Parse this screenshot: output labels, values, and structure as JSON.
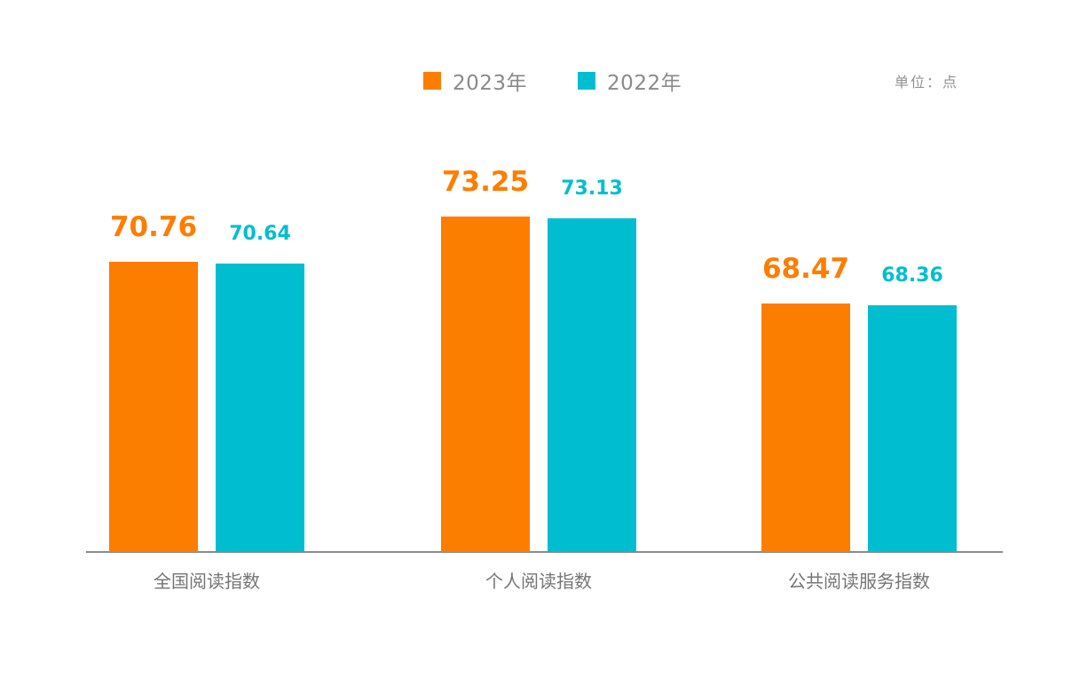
{
  "unit_label": "单位：点",
  "chart_data": {
    "type": "bar",
    "categories": [
      "全国阅读指数",
      "个人阅读指数",
      "公共阅读服务指数"
    ],
    "series": [
      {
        "name": "2023年",
        "color": "#FC7E00",
        "values": [
          70.76,
          73.25,
          68.47
        ]
      },
      {
        "name": "2022年",
        "color": "#00BED0",
        "values": [
          70.64,
          73.13,
          68.36
        ]
      }
    ],
    "title": "",
    "xlabel": "",
    "ylabel": "",
    "ylim": [
      54.8,
      75
    ],
    "grid": false,
    "legend_position": "top-center",
    "value_labels": true,
    "value_label_format": "2-decimals",
    "axis_line_color": "#8c8c8c",
    "category_label_color": "#757575",
    "legend_text_color": "#8a8a8a"
  }
}
